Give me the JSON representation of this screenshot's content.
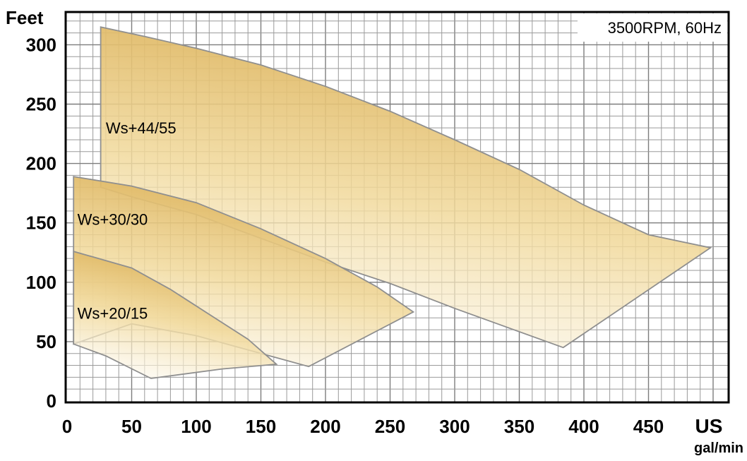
{
  "chart_data": {
    "type": "area",
    "ylabel": "Feet",
    "xlabel": "US",
    "xlabel_unit": "gal/min",
    "annotation": "3500RPM, 60Hz",
    "xlim": [
      0,
      500
    ],
    "ylim": [
      0,
      325
    ],
    "x_ticks": [
      "0",
      "50",
      "100",
      "150",
      "200",
      "250",
      "300",
      "350",
      "400",
      "450"
    ],
    "y_ticks": [
      "0",
      "50",
      "100",
      "150",
      "200",
      "250",
      "300"
    ],
    "grid": true,
    "series": [
      {
        "name": "Ws+44/55",
        "label_at": [
          30,
          230
        ],
        "polygon": [
          [
            26,
            315
          ],
          [
            60,
            307
          ],
          [
            100,
            297
          ],
          [
            150,
            283
          ],
          [
            200,
            265
          ],
          [
            250,
            244
          ],
          [
            300,
            220
          ],
          [
            350,
            195
          ],
          [
            400,
            165
          ],
          [
            450,
            140
          ],
          [
            498,
            129
          ],
          [
            384,
            45
          ],
          [
            300,
            78
          ],
          [
            250,
            99
          ],
          [
            200,
            117
          ],
          [
            150,
            137
          ],
          [
            100,
            157
          ],
          [
            50,
            172
          ],
          [
            26,
            180
          ]
        ]
      },
      {
        "name": "Ws+30/30",
        "label_at": [
          8,
          153
        ],
        "polygon": [
          [
            5,
            189
          ],
          [
            50,
            181
          ],
          [
            100,
            167
          ],
          [
            150,
            145
          ],
          [
            200,
            120
          ],
          [
            240,
            96
          ],
          [
            268,
            75
          ],
          [
            187,
            29
          ],
          [
            100,
            55
          ],
          [
            50,
            65
          ],
          [
            5,
            48
          ]
        ]
      },
      {
        "name": "Ws+20/15",
        "label_at": [
          8,
          74
        ],
        "polygon": [
          [
            5,
            126
          ],
          [
            50,
            112
          ],
          [
            80,
            94
          ],
          [
            110,
            73
          ],
          [
            140,
            52
          ],
          [
            162,
            31
          ],
          [
            120,
            27
          ],
          [
            65,
            19
          ],
          [
            30,
            38
          ],
          [
            5,
            48
          ]
        ]
      }
    ]
  }
}
